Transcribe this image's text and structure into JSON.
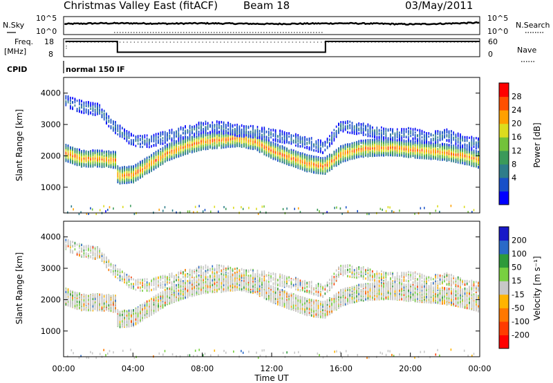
{
  "header": {
    "station": "Christmas Valley East (fitACF)",
    "beam": "Beam 18",
    "date": "03/May/2011"
  },
  "status_panels": {
    "nsky_label": "N.Sky",
    "nsearch_label": "N.Search",
    "freq_label": "Freq.",
    "freq_unit": "[MHz]",
    "nave_label": "Nave",
    "cpid_label": "CPID",
    "cpid_text": "normal 150 IF",
    "noise_ticks": [
      "10^5",
      "10^0"
    ],
    "freq_ticks": [
      "18",
      "8"
    ],
    "nave_ticks": [
      "60",
      "0"
    ]
  },
  "x_axis": {
    "label": "Time UT",
    "ticks": [
      "00:00",
      "04:00",
      "08:00",
      "12:00",
      "16:00",
      "20:00",
      "00:00"
    ]
  },
  "y_axis": {
    "label": "Slant Range [km]",
    "ticks": [
      "1000",
      "2000",
      "3000",
      "4000"
    ]
  },
  "colorbars": {
    "power": {
      "label": "Power [dB]",
      "ticks": [
        "4",
        "8",
        "12",
        "16",
        "20",
        "24",
        "28"
      ],
      "colors": [
        "#0000ff",
        "#1850c8",
        "#2e7d8a",
        "#3b9a5a",
        "#73c23a",
        "#dcdc1e",
        "#ffa000",
        "#ff5000",
        "#ff0000"
      ]
    },
    "velocity": {
      "label": "Velocity [m s⁻¹]",
      "ticks": [
        "200",
        "100",
        "50",
        "15",
        "-15",
        "-50",
        "-100",
        "-200"
      ],
      "colors": [
        "#1818c8",
        "#2a6ac8",
        "#2e9a3a",
        "#78d040",
        "#c8c8c8",
        "#ffb400",
        "#ff7800",
        "#ff3c00",
        "#ff0000"
      ]
    }
  },
  "chart_data": [
    {
      "type": "line",
      "title": "N.Sky / N.Search",
      "x": [
        0,
        1,
        2,
        3,
        4,
        6,
        8,
        10,
        12,
        14,
        16,
        18,
        20,
        22,
        24
      ],
      "series": [
        {
          "name": "N.Sky",
          "values": [
            3.2,
            3.3,
            3.4,
            3.4,
            3.4,
            3.3,
            3.4,
            3.3,
            3.2,
            3.3,
            3.4,
            3.3,
            3.1,
            3.3,
            3.6
          ]
        }
      ],
      "ylim": [
        0,
        5
      ]
    },
    {
      "type": "line",
      "title": "Freq. [MHz] / Nave",
      "x": [
        0.1,
        3.1,
        3.1,
        15.1,
        15.1,
        24
      ],
      "series": [
        {
          "name": "Freq.",
          "values": [
            16.5,
            16.5,
            10.5,
            10.5,
            16.5,
            16.5
          ]
        }
      ],
      "ylim": [
        8,
        18
      ]
    },
    {
      "type": "heatmap",
      "title": "Power [dB]",
      "xlabel": "Time UT",
      "ylabel": "Slant Range [km]",
      "xlim": [
        0,
        24
      ],
      "ylim": [
        180,
        4500
      ],
      "echo_bands": [
        {
          "t": [
            0,
            1,
            2,
            3,
            3.1,
            4,
            5,
            6,
            7,
            8,
            9,
            10,
            11,
            12,
            13,
            14,
            15,
            16,
            17,
            18,
            19,
            20,
            21,
            22,
            23,
            24
          ],
          "range": [
            2150,
            1950,
            1950,
            1900,
            1400,
            1450,
            1800,
            2150,
            2350,
            2500,
            2550,
            2600,
            2500,
            2200,
            2000,
            1800,
            1700,
            2100,
            2250,
            2300,
            2300,
            2250,
            2200,
            2150,
            2050,
            1900
          ],
          "power_db": 26
        },
        {
          "t": [
            0,
            1,
            2,
            3,
            4,
            5,
            6,
            7,
            8,
            9,
            10,
            11,
            12,
            13,
            14,
            15,
            16,
            17,
            18,
            19,
            20,
            21,
            22,
            23,
            24
          ],
          "range": [
            3800,
            3600,
            3500,
            2900,
            2500,
            2500,
            2650,
            2800,
            2950,
            2950,
            2850,
            2800,
            2700,
            2600,
            2450,
            2300,
            3000,
            2900,
            2800,
            2700,
            2750,
            2600,
            2700,
            2500,
            2400
          ],
          "power_db": 10
        }
      ]
    },
    {
      "type": "heatmap",
      "title": "Velocity [m s-1]",
      "xlabel": "Time UT",
      "ylabel": "Slant Range [km]",
      "xlim": [
        0,
        24
      ],
      "ylim": [
        180,
        4500
      ],
      "dominant_velocity_ms": [
        -15,
        15
      ]
    }
  ]
}
